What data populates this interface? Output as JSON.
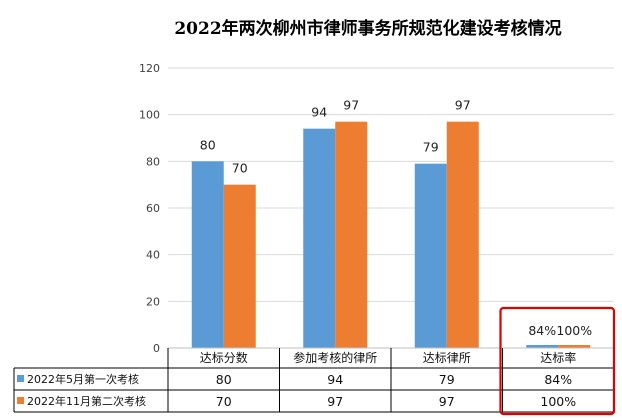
{
  "chart_data": {
    "type": "bar",
    "title": "2022年两次柳州市律师事务所规范化建设考核情况",
    "categories": [
      "达标分数",
      "参加考核的律所",
      "达标律所",
      "达标率"
    ],
    "ylim": [
      0,
      120
    ],
    "yticks": [
      "0",
      "20",
      "40",
      "60",
      "80",
      "100",
      "120"
    ],
    "grid": true,
    "legend": "bottom-table",
    "series": [
      {
        "name": "2022年5月第一次考核",
        "color": "#5b9bd5",
        "values": [
          80,
          94,
          79,
          0.84
        ],
        "labels": [
          "80",
          "94",
          "79",
          "84%"
        ]
      },
      {
        "name": "2022年11月第二次考核",
        "color": "#ed7d31",
        "values": [
          70,
          97,
          97,
          1.0
        ],
        "labels": [
          "70",
          "97",
          "97",
          "100%"
        ]
      }
    ],
    "highlight": {
      "category_index": 3,
      "color": "#e00000"
    }
  }
}
